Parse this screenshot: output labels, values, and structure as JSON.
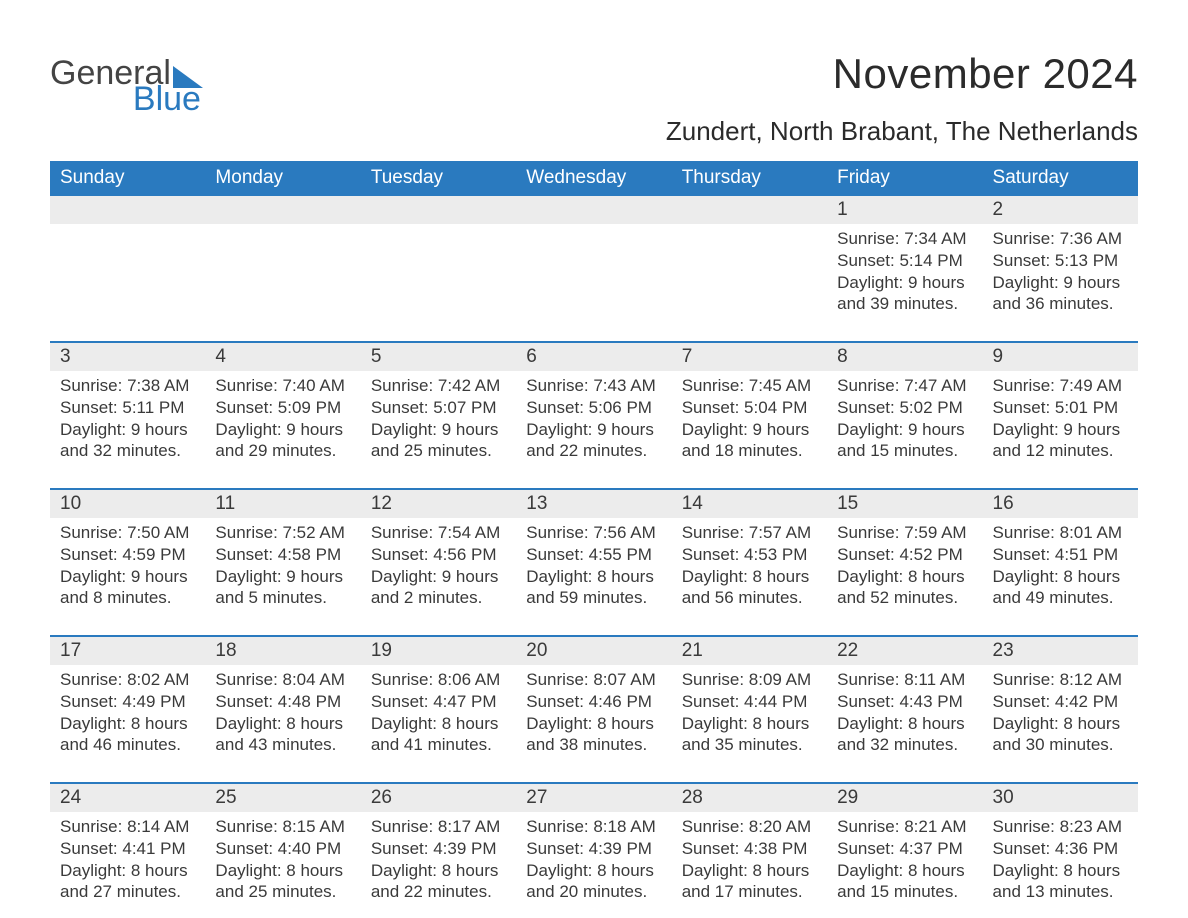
{
  "brand": {
    "word1": "General",
    "word2": "Blue",
    "triangle_color": "#2a7abf",
    "text_color_1": "#444444",
    "text_color_2": "#2a7abf"
  },
  "header": {
    "month_title": "November 2024",
    "location": "Zundert, North Brabant, The Netherlands"
  },
  "colors": {
    "header_bar": "#2a7abf",
    "header_text": "#ffffff",
    "daynum_band": "#ececec",
    "week_rule": "#2a7abf",
    "body_text": "#3a3a3a",
    "background": "#ffffff"
  },
  "days_of_week": [
    "Sunday",
    "Monday",
    "Tuesday",
    "Wednesday",
    "Thursday",
    "Friday",
    "Saturday"
  ],
  "weeks": [
    [
      null,
      null,
      null,
      null,
      null,
      {
        "n": "1",
        "sunrise": "Sunrise: 7:34 AM",
        "sunset": "Sunset: 5:14 PM",
        "day1": "Daylight: 9 hours",
        "day2": "and 39 minutes."
      },
      {
        "n": "2",
        "sunrise": "Sunrise: 7:36 AM",
        "sunset": "Sunset: 5:13 PM",
        "day1": "Daylight: 9 hours",
        "day2": "and 36 minutes."
      }
    ],
    [
      {
        "n": "3",
        "sunrise": "Sunrise: 7:38 AM",
        "sunset": "Sunset: 5:11 PM",
        "day1": "Daylight: 9 hours",
        "day2": "and 32 minutes."
      },
      {
        "n": "4",
        "sunrise": "Sunrise: 7:40 AM",
        "sunset": "Sunset: 5:09 PM",
        "day1": "Daylight: 9 hours",
        "day2": "and 29 minutes."
      },
      {
        "n": "5",
        "sunrise": "Sunrise: 7:42 AM",
        "sunset": "Sunset: 5:07 PM",
        "day1": "Daylight: 9 hours",
        "day2": "and 25 minutes."
      },
      {
        "n": "6",
        "sunrise": "Sunrise: 7:43 AM",
        "sunset": "Sunset: 5:06 PM",
        "day1": "Daylight: 9 hours",
        "day2": "and 22 minutes."
      },
      {
        "n": "7",
        "sunrise": "Sunrise: 7:45 AM",
        "sunset": "Sunset: 5:04 PM",
        "day1": "Daylight: 9 hours",
        "day2": "and 18 minutes."
      },
      {
        "n": "8",
        "sunrise": "Sunrise: 7:47 AM",
        "sunset": "Sunset: 5:02 PM",
        "day1": "Daylight: 9 hours",
        "day2": "and 15 minutes."
      },
      {
        "n": "9",
        "sunrise": "Sunrise: 7:49 AM",
        "sunset": "Sunset: 5:01 PM",
        "day1": "Daylight: 9 hours",
        "day2": "and 12 minutes."
      }
    ],
    [
      {
        "n": "10",
        "sunrise": "Sunrise: 7:50 AM",
        "sunset": "Sunset: 4:59 PM",
        "day1": "Daylight: 9 hours",
        "day2": "and 8 minutes."
      },
      {
        "n": "11",
        "sunrise": "Sunrise: 7:52 AM",
        "sunset": "Sunset: 4:58 PM",
        "day1": "Daylight: 9 hours",
        "day2": "and 5 minutes."
      },
      {
        "n": "12",
        "sunrise": "Sunrise: 7:54 AM",
        "sunset": "Sunset: 4:56 PM",
        "day1": "Daylight: 9 hours",
        "day2": "and 2 minutes."
      },
      {
        "n": "13",
        "sunrise": "Sunrise: 7:56 AM",
        "sunset": "Sunset: 4:55 PM",
        "day1": "Daylight: 8 hours",
        "day2": "and 59 minutes."
      },
      {
        "n": "14",
        "sunrise": "Sunrise: 7:57 AM",
        "sunset": "Sunset: 4:53 PM",
        "day1": "Daylight: 8 hours",
        "day2": "and 56 minutes."
      },
      {
        "n": "15",
        "sunrise": "Sunrise: 7:59 AM",
        "sunset": "Sunset: 4:52 PM",
        "day1": "Daylight: 8 hours",
        "day2": "and 52 minutes."
      },
      {
        "n": "16",
        "sunrise": "Sunrise: 8:01 AM",
        "sunset": "Sunset: 4:51 PM",
        "day1": "Daylight: 8 hours",
        "day2": "and 49 minutes."
      }
    ],
    [
      {
        "n": "17",
        "sunrise": "Sunrise: 8:02 AM",
        "sunset": "Sunset: 4:49 PM",
        "day1": "Daylight: 8 hours",
        "day2": "and 46 minutes."
      },
      {
        "n": "18",
        "sunrise": "Sunrise: 8:04 AM",
        "sunset": "Sunset: 4:48 PM",
        "day1": "Daylight: 8 hours",
        "day2": "and 43 minutes."
      },
      {
        "n": "19",
        "sunrise": "Sunrise: 8:06 AM",
        "sunset": "Sunset: 4:47 PM",
        "day1": "Daylight: 8 hours",
        "day2": "and 41 minutes."
      },
      {
        "n": "20",
        "sunrise": "Sunrise: 8:07 AM",
        "sunset": "Sunset: 4:46 PM",
        "day1": "Daylight: 8 hours",
        "day2": "and 38 minutes."
      },
      {
        "n": "21",
        "sunrise": "Sunrise: 8:09 AM",
        "sunset": "Sunset: 4:44 PM",
        "day1": "Daylight: 8 hours",
        "day2": "and 35 minutes."
      },
      {
        "n": "22",
        "sunrise": "Sunrise: 8:11 AM",
        "sunset": "Sunset: 4:43 PM",
        "day1": "Daylight: 8 hours",
        "day2": "and 32 minutes."
      },
      {
        "n": "23",
        "sunrise": "Sunrise: 8:12 AM",
        "sunset": "Sunset: 4:42 PM",
        "day1": "Daylight: 8 hours",
        "day2": "and 30 minutes."
      }
    ],
    [
      {
        "n": "24",
        "sunrise": "Sunrise: 8:14 AM",
        "sunset": "Sunset: 4:41 PM",
        "day1": "Daylight: 8 hours",
        "day2": "and 27 minutes."
      },
      {
        "n": "25",
        "sunrise": "Sunrise: 8:15 AM",
        "sunset": "Sunset: 4:40 PM",
        "day1": "Daylight: 8 hours",
        "day2": "and 25 minutes."
      },
      {
        "n": "26",
        "sunrise": "Sunrise: 8:17 AM",
        "sunset": "Sunset: 4:39 PM",
        "day1": "Daylight: 8 hours",
        "day2": "and 22 minutes."
      },
      {
        "n": "27",
        "sunrise": "Sunrise: 8:18 AM",
        "sunset": "Sunset: 4:39 PM",
        "day1": "Daylight: 8 hours",
        "day2": "and 20 minutes."
      },
      {
        "n": "28",
        "sunrise": "Sunrise: 8:20 AM",
        "sunset": "Sunset: 4:38 PM",
        "day1": "Daylight: 8 hours",
        "day2": "and 17 minutes."
      },
      {
        "n": "29",
        "sunrise": "Sunrise: 8:21 AM",
        "sunset": "Sunset: 4:37 PM",
        "day1": "Daylight: 8 hours",
        "day2": "and 15 minutes."
      },
      {
        "n": "30",
        "sunrise": "Sunrise: 8:23 AM",
        "sunset": "Sunset: 4:36 PM",
        "day1": "Daylight: 8 hours",
        "day2": "and 13 minutes."
      }
    ]
  ]
}
